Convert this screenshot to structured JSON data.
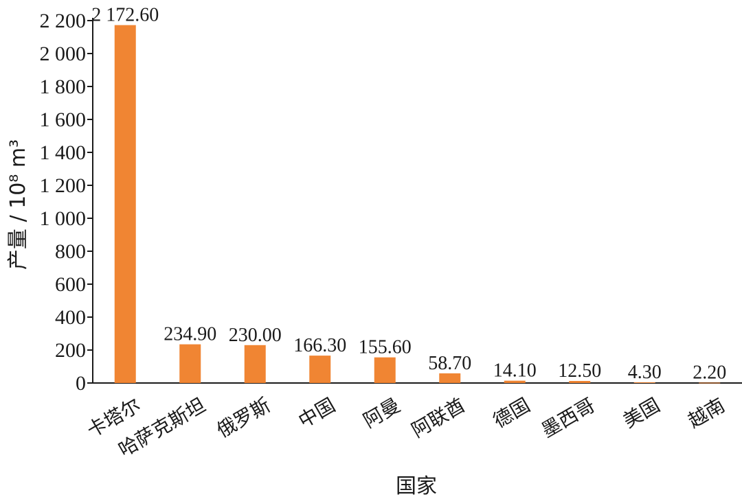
{
  "chart_data": {
    "type": "bar",
    "categories": [
      "卡塔尔",
      "哈萨克斯坦",
      "俄罗斯",
      "中国",
      "阿曼",
      "阿联酋",
      "德国",
      "墨西哥",
      "美国",
      "越南"
    ],
    "values": [
      2172.6,
      234.9,
      230.0,
      166.3,
      155.6,
      58.7,
      14.1,
      12.5,
      4.3,
      2.2
    ],
    "value_labels": [
      "2 172.60",
      "234.90",
      "230.00",
      "166.30",
      "155.60",
      "58.70",
      "14.10",
      "12.50",
      "4.30",
      "2.20"
    ],
    "title": "",
    "xlabel": "国家",
    "ylabel": "产量 / 10⁸ m³",
    "ylim": [
      0,
      2200
    ],
    "yticks": [
      0,
      200,
      400,
      600,
      800,
      1000,
      1200,
      1400,
      1600,
      1800,
      2000,
      2200
    ],
    "ytick_labels": [
      "0",
      "200",
      "400",
      "600",
      "800",
      "1 000",
      "1 200",
      "1 400",
      "1 600",
      "1 800",
      "2 000",
      "2 200"
    ],
    "grid": false,
    "legend": "none",
    "colors": {
      "bar": "#F08533",
      "axis": "#1a1a1a"
    }
  }
}
